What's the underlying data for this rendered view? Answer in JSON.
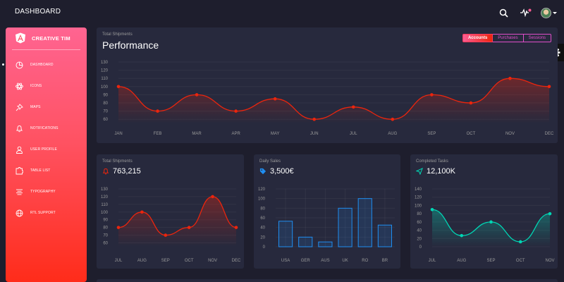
{
  "topbar": {
    "brand": "DASHBOARD"
  },
  "sidebar": {
    "logo_text": "CREATIVE TIM",
    "items": [
      {
        "label": "DASHBOARD",
        "icon": "chart-pie-icon"
      },
      {
        "label": "ICONS",
        "icon": "atom-icon"
      },
      {
        "label": "MAPS",
        "icon": "pin-icon"
      },
      {
        "label": "NOTIFICATIONS",
        "icon": "bell-icon"
      },
      {
        "label": "USER PROFILE",
        "icon": "single-user-icon"
      },
      {
        "label": "TABLE LIST",
        "icon": "puzzle-icon"
      },
      {
        "label": "TYPOGRAPHY",
        "icon": "align-center-icon"
      },
      {
        "label": "RTL SUPPORT",
        "icon": "world-icon"
      }
    ]
  },
  "performance": {
    "subtitle": "Total Shipments",
    "title": "Performance",
    "tabs": [
      "Accounts",
      "Purchases",
      "Sessions"
    ],
    "active_tab": "Accounts"
  },
  "shipments": {
    "subtitle": "Total Shipments",
    "value": "763,215"
  },
  "sales": {
    "subtitle": "Daily Sales",
    "value": "3,500€"
  },
  "tasks": {
    "subtitle": "Completed Tasks",
    "value": "12,100K"
  },
  "colors": {
    "background": "#1e1e2d",
    "card": "#27293d",
    "red_line": "#ec250d",
    "blue_bar": "#1f8ef1",
    "teal_line": "#00d6b4",
    "accent_pink": "#e14eca"
  },
  "chart_data": [
    {
      "type": "line",
      "categories": [
        "JAN",
        "FEB",
        "MAR",
        "APR",
        "MAY",
        "JUN",
        "JUL",
        "AUG",
        "SEP",
        "OCT",
        "NOV",
        "DEC"
      ],
      "values": [
        100,
        70,
        90,
        70,
        85,
        60,
        75,
        60,
        90,
        80,
        110,
        100
      ],
      "yticks": [
        60,
        70,
        80,
        90,
        100,
        110,
        120,
        130
      ],
      "ylim": [
        55,
        130
      ],
      "grid": true
    },
    {
      "type": "line",
      "categories": [
        "JUL",
        "AUG",
        "SEP",
        "OCT",
        "NOV",
        "DEC"
      ],
      "values": [
        80,
        100,
        70,
        80,
        120,
        80
      ],
      "yticks": [
        60,
        70,
        80,
        90,
        100,
        110,
        120,
        130
      ],
      "ylim": [
        55,
        130
      ],
      "grid": true
    },
    {
      "type": "bar",
      "categories": [
        "USA",
        "GER",
        "AUS",
        "UK",
        "RO",
        "BR"
      ],
      "values": [
        53,
        20,
        10,
        80,
        100,
        45
      ],
      "yticks": [
        0,
        20,
        40,
        60,
        80,
        100,
        120
      ],
      "ylim": [
        0,
        120
      ],
      "grid": true
    },
    {
      "type": "line",
      "categories": [
        "JUL",
        "AUG",
        "SEP",
        "OCT",
        "NOV"
      ],
      "values": [
        90,
        27,
        60,
        12,
        80
      ],
      "yticks": [
        0,
        20,
        40,
        60,
        80,
        100,
        120,
        140
      ],
      "ylim": [
        0,
        140
      ],
      "grid": true
    }
  ]
}
